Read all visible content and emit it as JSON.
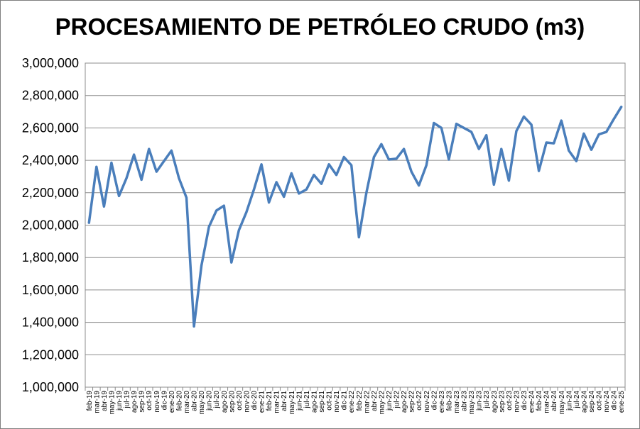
{
  "chart_data": {
    "type": "line",
    "title": "PROCESAMIENTO DE PETRÓLEO CRUDO (m3)",
    "xlabel": "",
    "ylabel": "",
    "ylim": [
      1000000,
      3000000
    ],
    "ytick_step": 200000,
    "grid": true,
    "legend": "none",
    "line_color": "#4a7ebb",
    "categories": [
      "feb-19",
      "mar-19",
      "abr-19",
      "may-19",
      "jun-19",
      "jul-19",
      "ago-19",
      "sep-19",
      "oct-19",
      "nov-19",
      "dic-19",
      "ene-20",
      "feb-20",
      "mar-20",
      "abr-20",
      "may-20",
      "jun-20",
      "jul-20",
      "ago-20",
      "sep-20",
      "oct-20",
      "nov-20",
      "dic-20",
      "ene-21",
      "feb-21",
      "mar-21",
      "abr-21",
      "may-21",
      "jun-21",
      "jul-21",
      "ago-21",
      "sep-21",
      "oct-21",
      "nov-21",
      "dic-21",
      "ene-22",
      "feb-22",
      "mar-22",
      "abr-22",
      "may-22",
      "jun-22",
      "jul-22",
      "ago-22",
      "sep-22",
      "oct-22",
      "nov-22",
      "dic-22",
      "ene-23",
      "feb-23",
      "mar-23",
      "abr-23",
      "may-23",
      "jun-23",
      "jul-23",
      "ago-23",
      "sep-23",
      "oct-23",
      "nov-23",
      "dic-23",
      "ene-24",
      "feb-24",
      "mar-24",
      "abr-24",
      "may-24",
      "jun-24",
      "jul-24",
      "ago-24",
      "sep-24",
      "oct-24",
      "nov-24",
      "dic-24",
      "ene-25"
    ],
    "values": [
      2015000,
      2360000,
      2115000,
      2385000,
      2180000,
      2290000,
      2435000,
      2280000,
      2470000,
      2330000,
      2395000,
      2460000,
      2290000,
      2170000,
      1375000,
      1750000,
      1990000,
      2090000,
      2120000,
      1770000,
      1970000,
      2080000,
      2220000,
      2375000,
      2140000,
      2265000,
      2175000,
      2320000,
      2195000,
      2220000,
      2310000,
      2255000,
      2375000,
      2310000,
      2420000,
      2370000,
      1925000,
      2200000,
      2420000,
      2500000,
      2405000,
      2410000,
      2470000,
      2330000,
      2245000,
      2370000,
      2630000,
      2600000,
      2405000,
      2625000,
      2600000,
      2575000,
      2470000,
      2555000,
      2250000,
      2470000,
      2275000,
      2580000,
      2670000,
      2620000,
      2335000,
      2510000,
      2505000,
      2645000,
      2460000,
      2395000,
      2565000,
      2465000,
      2560000,
      2575000,
      2655000,
      2730000
    ]
  }
}
